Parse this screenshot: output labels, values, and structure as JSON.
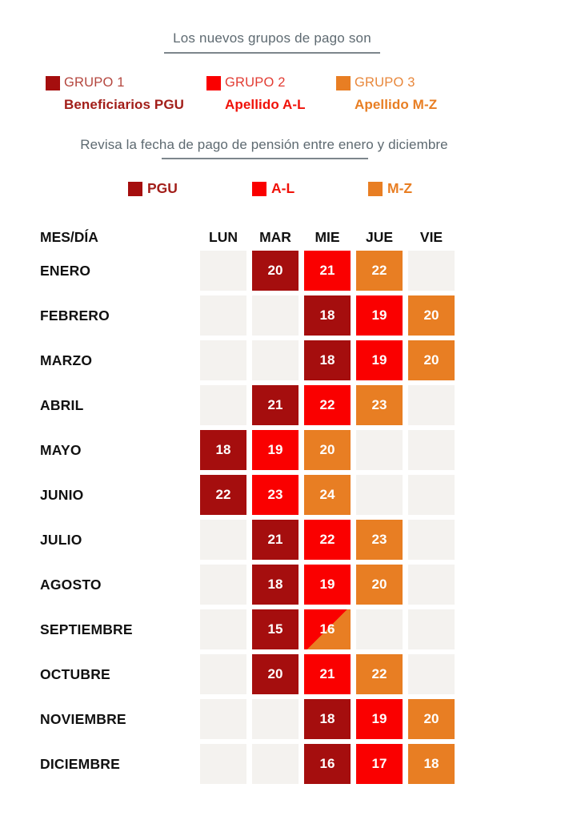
{
  "title": "Los nuevos grupos de pago son",
  "subtitle": "Revisa la fecha de pago de pensión entre enero y diciembre",
  "groups": [
    {
      "title": "GRUPO 1",
      "subtitle": "Beneficiarios PGU",
      "legend_label": "PGU"
    },
    {
      "title": "GRUPO 2",
      "subtitle": "Apellido A-L",
      "legend_label": "A-L"
    },
    {
      "title": "GRUPO 3",
      "subtitle": "Apellido M-Z",
      "legend_label": "M-Z"
    }
  ],
  "colors": {
    "group1": "#A50E0E",
    "group2": "#FA0000",
    "group3": "#E87E23",
    "group1_title": "#B4463E",
    "group2_title": "#E23C33",
    "group3_title": "#E8873B",
    "group1_label": "#A21E19",
    "group2_label": "#F01108",
    "group3_label": "#E87E23",
    "empty_cell": "#F4F2EF",
    "title_text": "#5E6A71",
    "rule": "#7D868C",
    "cell_text": "#FFFFFF",
    "header_text": "#111111"
  },
  "chart_data": {
    "type": "table",
    "title": "Los nuevos grupos de pago son",
    "subtitle": "Revisa la fecha de pago de pensión entre enero y diciembre",
    "legend": [
      {
        "label": "PGU",
        "group": "group1",
        "color": "#A50E0E"
      },
      {
        "label": "A-L",
        "group": "group2",
        "color": "#FA0000"
      },
      {
        "label": "M-Z",
        "group": "group3",
        "color": "#E87E23"
      }
    ],
    "header": {
      "month_col": "MES/DÍA",
      "days": [
        "LUN",
        "MAR",
        "MIE",
        "JUE",
        "VIE"
      ]
    },
    "rows": [
      {
        "month": "ENERO",
        "cells": [
          {
            "g": "none"
          },
          {
            "g": "group1",
            "v": "20"
          },
          {
            "g": "group2",
            "v": "21"
          },
          {
            "g": "group3",
            "v": "22"
          },
          {
            "g": "none"
          }
        ]
      },
      {
        "month": "FEBRERO",
        "cells": [
          {
            "g": "none"
          },
          {
            "g": "none"
          },
          {
            "g": "group1",
            "v": "18"
          },
          {
            "g": "group2",
            "v": "19"
          },
          {
            "g": "group3",
            "v": "20"
          }
        ]
      },
      {
        "month": "MARZO",
        "cells": [
          {
            "g": "none"
          },
          {
            "g": "none"
          },
          {
            "g": "group1",
            "v": "18"
          },
          {
            "g": "group2",
            "v": "19"
          },
          {
            "g": "group3",
            "v": "20"
          }
        ]
      },
      {
        "month": "ABRIL",
        "cells": [
          {
            "g": "none"
          },
          {
            "g": "group1",
            "v": "21"
          },
          {
            "g": "group2",
            "v": "22"
          },
          {
            "g": "group3",
            "v": "23"
          },
          {
            "g": "none"
          }
        ]
      },
      {
        "month": "MAYO",
        "cells": [
          {
            "g": "group1",
            "v": "18"
          },
          {
            "g": "group2",
            "v": "19"
          },
          {
            "g": "group3",
            "v": "20"
          },
          {
            "g": "none"
          },
          {
            "g": "none"
          }
        ]
      },
      {
        "month": "JUNIO",
        "cells": [
          {
            "g": "group1",
            "v": "22"
          },
          {
            "g": "group2",
            "v": "23"
          },
          {
            "g": "group3",
            "v": "24"
          },
          {
            "g": "none"
          },
          {
            "g": "none"
          }
        ]
      },
      {
        "month": "JULIO",
        "cells": [
          {
            "g": "none"
          },
          {
            "g": "group1",
            "v": "21"
          },
          {
            "g": "group2",
            "v": "22"
          },
          {
            "g": "group3",
            "v": "23"
          },
          {
            "g": "none"
          }
        ]
      },
      {
        "month": "AGOSTO",
        "cells": [
          {
            "g": "none"
          },
          {
            "g": "group1",
            "v": "18"
          },
          {
            "g": "group2",
            "v": "19"
          },
          {
            "g": "group3",
            "v": "20"
          },
          {
            "g": "none"
          }
        ]
      },
      {
        "month": "SEPTIEMBRE",
        "cells": [
          {
            "g": "none"
          },
          {
            "g": "group1",
            "v": "15"
          },
          {
            "g": "split",
            "v": "16"
          },
          {
            "g": "none"
          },
          {
            "g": "none"
          }
        ]
      },
      {
        "month": "OCTUBRE",
        "cells": [
          {
            "g": "none"
          },
          {
            "g": "group1",
            "v": "20"
          },
          {
            "g": "group2",
            "v": "21"
          },
          {
            "g": "group3",
            "v": "22"
          },
          {
            "g": "none"
          }
        ]
      },
      {
        "month": "NOVIEMBRE",
        "cells": [
          {
            "g": "none"
          },
          {
            "g": "none"
          },
          {
            "g": "group1",
            "v": "18"
          },
          {
            "g": "group2",
            "v": "19"
          },
          {
            "g": "group3",
            "v": "20"
          }
        ]
      },
      {
        "month": "DICIEMBRE",
        "cells": [
          {
            "g": "none"
          },
          {
            "g": "none"
          },
          {
            "g": "group1",
            "v": "16"
          },
          {
            "g": "group2",
            "v": "17"
          },
          {
            "g": "group3",
            "v": "18"
          }
        ]
      }
    ]
  }
}
